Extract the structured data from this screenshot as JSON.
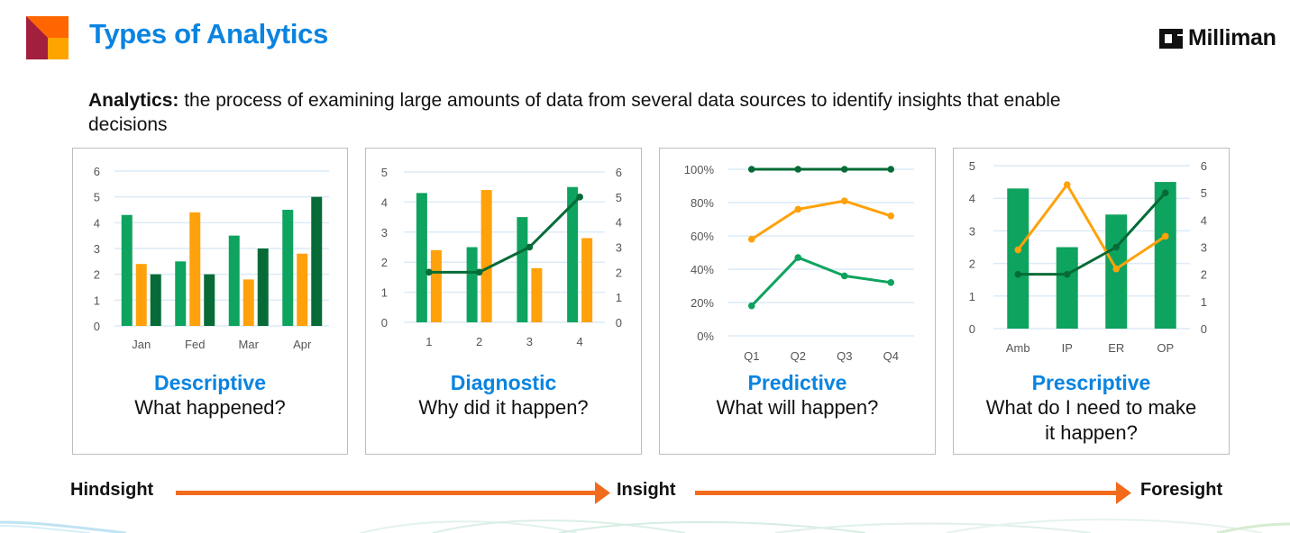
{
  "header": {
    "title": "Types of Analytics",
    "brand": "Milliman",
    "logo_colors": {
      "maroon": "#a31f3e",
      "orange": "#ff6600",
      "amber": "#ffa300"
    }
  },
  "definition": {
    "term": "Analytics:",
    "text": " the process of examining large amounts of data from several data sources to identify insights that enable decisions"
  },
  "colors": {
    "title_blue": "#0a84e0",
    "green": "#0ea35e",
    "orange": "#ffa10a",
    "dark_green": "#066b37",
    "arrow": "#f26b1d",
    "gridline": "#dcebf7"
  },
  "cards": [
    {
      "title": "Descriptive",
      "subtitle": "What happened?"
    },
    {
      "title": "Diagnostic",
      "subtitle": "Why did it happen?"
    },
    {
      "title": "Predictive",
      "subtitle": "What will happen?"
    },
    {
      "title": "Prescriptive",
      "subtitle_line1": "What do I need to make",
      "subtitle_line2": "it happen?"
    }
  ],
  "timeline": {
    "start": "Hindsight",
    "middle": "Insight",
    "end": "Foresight"
  },
  "chart_data": [
    {
      "type": "bar",
      "title": "Descriptive",
      "categories": [
        "Jan",
        "Fed",
        "Mar",
        "Apr"
      ],
      "series": [
        {
          "name": "Series 1",
          "color": "#0ea35e",
          "values": [
            4.3,
            2.5,
            3.5,
            4.5
          ]
        },
        {
          "name": "Series 2",
          "color": "#ffa10a",
          "values": [
            2.4,
            4.4,
            1.8,
            2.8
          ]
        },
        {
          "name": "Series 3",
          "color": "#066b37",
          "values": [
            2,
            2,
            3,
            5
          ]
        }
      ],
      "yticks": [
        "0",
        "1",
        "2",
        "3",
        "4",
        "5",
        "6"
      ],
      "ylim": [
        0,
        6
      ],
      "grid": true,
      "legend": "none"
    },
    {
      "type": "bar+line",
      "title": "Diagnostic",
      "categories": [
        "1",
        "2",
        "3",
        "4"
      ],
      "series": [
        {
          "name": "Series 1",
          "type": "bar",
          "axis": "left",
          "color": "#0ea35e",
          "values": [
            4.3,
            2.5,
            3.5,
            4.5
          ]
        },
        {
          "name": "Series 2",
          "type": "bar",
          "axis": "left",
          "color": "#ffa10a",
          "values": [
            2.4,
            4.4,
            1.8,
            2.8
          ]
        },
        {
          "name": "Series 3",
          "type": "line",
          "axis": "right",
          "color": "#066b37",
          "values": [
            2,
            2,
            3,
            5
          ]
        }
      ],
      "yticks_left": [
        "0",
        "1",
        "2",
        "3",
        "4",
        "5"
      ],
      "yticks_right": [
        "0",
        "1",
        "2",
        "3",
        "4",
        "5",
        "6"
      ],
      "ylim_left": [
        0,
        5
      ],
      "ylim_right": [
        0,
        6
      ],
      "grid": true,
      "legend": "none"
    },
    {
      "type": "line",
      "title": "Predictive",
      "categories": [
        "Q1",
        "Q2",
        "Q3",
        "Q4"
      ],
      "series": [
        {
          "name": "Series 1",
          "color": "#066b37",
          "values": [
            100,
            100,
            100,
            100
          ]
        },
        {
          "name": "Series 2",
          "color": "#ffa10a",
          "values": [
            58,
            76,
            81,
            72
          ]
        },
        {
          "name": "Series 3",
          "color": "#0ea35e",
          "values": [
            18,
            47,
            36,
            32
          ]
        }
      ],
      "yticks": [
        "0%",
        "20%",
        "40%",
        "60%",
        "80%",
        "100%"
      ],
      "ylim": [
        0,
        100
      ],
      "grid": true,
      "legend": "none"
    },
    {
      "type": "bar+line",
      "title": "Prescriptive",
      "categories": [
        "Amb",
        "IP",
        "ER",
        "OP"
      ],
      "series": [
        {
          "name": "Series 1",
          "type": "bar",
          "axis": "left",
          "color": "#0ea35e",
          "values": [
            4.3,
            2.5,
            3.5,
            4.5
          ]
        },
        {
          "name": "Series 2",
          "type": "line",
          "axis": "right",
          "color": "#ffa10a",
          "values": [
            2.9,
            5.3,
            2.2,
            3.4
          ]
        },
        {
          "name": "Series 3",
          "type": "line",
          "axis": "right",
          "color": "#066b37",
          "values": [
            2,
            2,
            3,
            5
          ]
        }
      ],
      "yticks_left": [
        "0",
        "1",
        "2",
        "3",
        "4",
        "5"
      ],
      "yticks_right": [
        "0",
        "1",
        "2",
        "3",
        "4",
        "5",
        "6"
      ],
      "ylim_left": [
        0,
        5
      ],
      "ylim_right": [
        0,
        6
      ],
      "grid": true,
      "legend": "none"
    }
  ]
}
